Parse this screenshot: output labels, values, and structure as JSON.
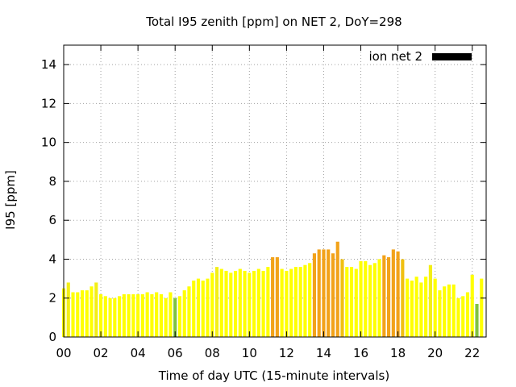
{
  "chart_data": {
    "type": "bar",
    "title": "Total I95 zenith [ppm] on NET 2, DoY=298",
    "xlabel": "Time of day UTC (15-minute intervals)",
    "ylabel": "I95 [ppm]",
    "xlim": [
      0,
      22.75
    ],
    "ylim": [
      0,
      15
    ],
    "grid": true,
    "legend_position": "top-right",
    "xtick_labels": [
      "00",
      "02",
      "04",
      "06",
      "08",
      "10",
      "12",
      "14",
      "16",
      "18",
      "20",
      "22"
    ],
    "ytick_labels": [
      "0",
      "2",
      "4",
      "6",
      "8",
      "10",
      "12",
      "14"
    ],
    "bar_width_hours": 0.18,
    "series": [
      {
        "name": "ion net 2",
        "legend_color": "#000000",
        "x": [
          0.0,
          0.25,
          0.5,
          0.75,
          1.0,
          1.25,
          1.5,
          1.75,
          2.0,
          2.25,
          2.5,
          2.75,
          3.0,
          3.25,
          3.5,
          3.75,
          4.0,
          4.25,
          4.5,
          4.75,
          5.0,
          5.25,
          5.5,
          5.75,
          6.0,
          6.25,
          6.5,
          6.75,
          7.0,
          7.25,
          7.5,
          7.75,
          8.0,
          8.25,
          8.5,
          8.75,
          9.0,
          9.25,
          9.5,
          9.75,
          10.0,
          10.25,
          10.5,
          10.75,
          11.0,
          11.25,
          11.5,
          11.75,
          12.0,
          12.25,
          12.5,
          12.75,
          13.0,
          13.25,
          13.5,
          13.75,
          14.0,
          14.25,
          14.5,
          14.75,
          15.0,
          15.25,
          15.5,
          15.75,
          16.0,
          16.25,
          16.5,
          16.75,
          17.0,
          17.25,
          17.5,
          17.75,
          18.0,
          18.25,
          18.5,
          18.75,
          19.0,
          19.25,
          19.5,
          19.75,
          20.0,
          20.25,
          20.5,
          20.75,
          21.0,
          21.25,
          21.5,
          21.75,
          22.0,
          22.25,
          22.5
        ],
        "values": [
          2.5,
          2.8,
          2.3,
          2.3,
          2.4,
          2.4,
          2.6,
          2.8,
          2.2,
          2.1,
          2.0,
          2.0,
          2.1,
          2.2,
          2.2,
          2.2,
          2.2,
          2.2,
          2.3,
          2.2,
          2.3,
          2.2,
          2.0,
          2.3,
          2.0,
          2.1,
          2.4,
          2.6,
          2.9,
          3.0,
          2.9,
          3.0,
          3.3,
          3.6,
          3.5,
          3.4,
          3.3,
          3.4,
          3.5,
          3.4,
          3.3,
          3.4,
          3.5,
          3.4,
          3.6,
          4.1,
          4.1,
          3.5,
          3.4,
          3.5,
          3.6,
          3.6,
          3.7,
          3.8,
          4.3,
          4.5,
          4.5,
          4.5,
          4.3,
          4.9,
          4.0,
          3.6,
          3.6,
          3.5,
          3.9,
          3.9,
          3.7,
          3.8,
          4.0,
          4.2,
          4.1,
          4.5,
          4.4,
          4.0,
          3.0,
          2.9,
          3.1,
          2.8,
          3.1,
          3.7,
          3.0,
          2.4,
          2.6,
          2.7,
          2.7,
          2.0,
          2.1,
          2.3,
          3.2,
          1.7,
          3.0
        ],
        "colors": [
          "#ffff00",
          "#f3ef16",
          "#ffff00",
          "#ffff00",
          "#ffff00",
          "#ffff00",
          "#ffff00",
          "#f3ef16",
          "#ffff00",
          "#ffff00",
          "#ffff00",
          "#ffff00",
          "#ffff00",
          "#ffff00",
          "#ffff00",
          "#ffff00",
          "#ffff00",
          "#ffff00",
          "#ffff00",
          "#ffff00",
          "#ffff00",
          "#ffff00",
          "#ffff00",
          "#ffff00",
          "#7fc241",
          "#ffff00",
          "#ffff00",
          "#ffff00",
          "#ffff00",
          "#ffff00",
          "#ffff00",
          "#ffff00",
          "#ffff00",
          "#f3ef16",
          "#ffff00",
          "#ffff00",
          "#ffff00",
          "#ffff00",
          "#ffff00",
          "#ffff00",
          "#ffff00",
          "#ffff00",
          "#ffff00",
          "#ffff00",
          "#ffff00",
          "#f2a219",
          "#f2a219",
          "#ffff00",
          "#ffff00",
          "#ffff00",
          "#ffff00",
          "#ffff00",
          "#ffff00",
          "#ffff00",
          "#f2a219",
          "#f2a219",
          "#f2a219",
          "#f2a219",
          "#f2a219",
          "#f2a219",
          "#f0c011",
          "#ffff00",
          "#ffff00",
          "#ffff00",
          "#ffff00",
          "#ffff00",
          "#ffff00",
          "#ffff00",
          "#ffff00",
          "#f2a219",
          "#f2a219",
          "#f2a219",
          "#f2a219",
          "#f0c011",
          "#ffff00",
          "#ffff00",
          "#ffff00",
          "#ffff00",
          "#ffff00",
          "#f3ef16",
          "#ffff00",
          "#ffff00",
          "#ffff00",
          "#ffff00",
          "#ffff00",
          "#ffff00",
          "#ffff00",
          "#ffff00",
          "#ffff00",
          "#7fc241",
          "#ffff00"
        ]
      }
    ]
  }
}
